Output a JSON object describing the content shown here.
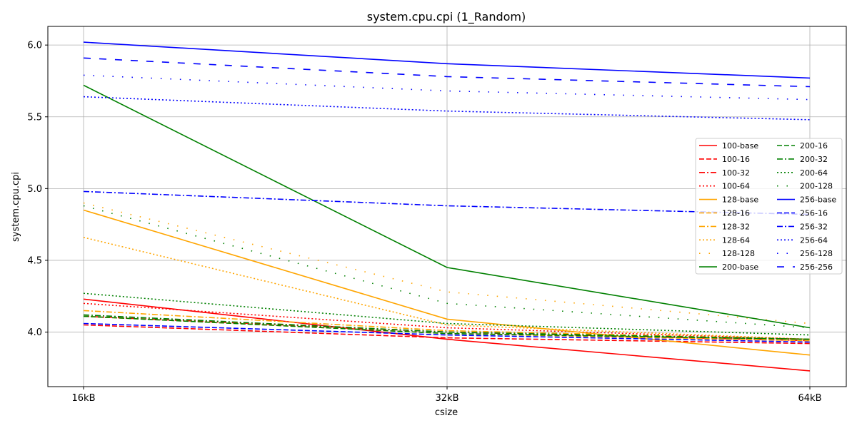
{
  "chart_data": {
    "type": "line",
    "title": "system.cpu.cpi (1_Random)",
    "xlabel": "csize",
    "ylabel": "system.cpu.cpi",
    "categories": [
      "16kB",
      "32kB",
      "64kB"
    ],
    "ylim": [
      3.62,
      6.13
    ],
    "yticks": [
      "4.0",
      "4.5",
      "5.0",
      "5.5",
      "6.0"
    ],
    "ytick_values": [
      4.0,
      4.5,
      5.0,
      5.5,
      6.0
    ],
    "grid": true,
    "legend_position": "center-right",
    "series": [
      {
        "name": "100-base",
        "color": "#ff0000",
        "style": "solid",
        "values": [
          4.23,
          3.95,
          3.73
        ]
      },
      {
        "name": "100-16",
        "color": "#ff0000",
        "style": "dashed",
        "values": [
          4.05,
          3.96,
          3.92
        ]
      },
      {
        "name": "100-32",
        "color": "#ff0000",
        "style": "dashdot",
        "values": [
          4.11,
          4.0,
          3.94
        ]
      },
      {
        "name": "100-64",
        "color": "#ff0000",
        "style": "dotted",
        "values": [
          4.2,
          4.03,
          3.95
        ]
      },
      {
        "name": "128-base",
        "color": "#ffa500",
        "style": "solid",
        "values": [
          4.85,
          4.09,
          3.84
        ]
      },
      {
        "name": "128-16",
        "color": "#ffa500",
        "style": "dashed",
        "values": [
          4.11,
          3.99,
          3.94
        ]
      },
      {
        "name": "128-32",
        "color": "#ffa500",
        "style": "dashdot",
        "values": [
          4.15,
          4.01,
          3.95
        ]
      },
      {
        "name": "128-64",
        "color": "#ffa500",
        "style": "dotted",
        "values": [
          4.66,
          4.05,
          3.95
        ]
      },
      {
        "name": "128-128",
        "color": "#ffa500",
        "style": "sparse",
        "values": [
          4.9,
          4.28,
          4.06
        ]
      },
      {
        "name": "200-base",
        "color": "#008000",
        "style": "solid",
        "values": [
          5.72,
          4.45,
          4.03
        ]
      },
      {
        "name": "200-16",
        "color": "#008000",
        "style": "dashed",
        "values": [
          4.11,
          3.99,
          3.95
        ]
      },
      {
        "name": "200-32",
        "color": "#008000",
        "style": "dashdot",
        "values": [
          4.12,
          4.0,
          3.95
        ]
      },
      {
        "name": "200-64",
        "color": "#008000",
        "style": "dotted",
        "values": [
          4.27,
          4.06,
          3.98
        ]
      },
      {
        "name": "200-128",
        "color": "#008000",
        "style": "sparse",
        "values": [
          4.88,
          4.2,
          4.03
        ]
      },
      {
        "name": "256-base",
        "color": "#0000ff",
        "style": "solid",
        "values": [
          6.02,
          5.87,
          5.77
        ]
      },
      {
        "name": "256-16",
        "color": "#0000ff",
        "style": "dashed",
        "values": [
          4.06,
          3.98,
          3.93
        ]
      },
      {
        "name": "256-32",
        "color": "#0000ff",
        "style": "dashdot",
        "values": [
          4.98,
          4.88,
          4.82
        ]
      },
      {
        "name": "256-64",
        "color": "#0000ff",
        "style": "dotted",
        "values": [
          5.64,
          5.54,
          5.48
        ]
      },
      {
        "name": "256-128",
        "color": "#0000ff",
        "style": "sparse",
        "values": [
          5.79,
          5.68,
          5.62
        ]
      },
      {
        "name": "256-256",
        "color": "#0000ff",
        "style": "loosedash",
        "values": [
          5.91,
          5.78,
          5.71
        ]
      }
    ]
  }
}
